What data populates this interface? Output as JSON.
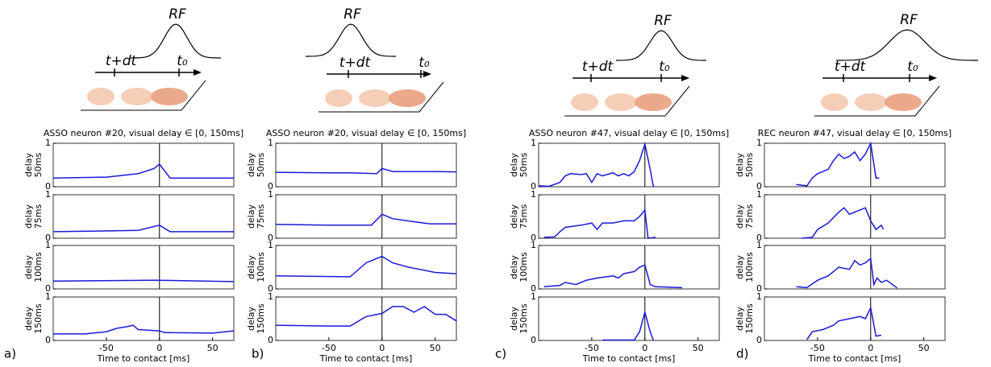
{
  "chart_data": [
    {
      "type": "line",
      "panel_label": "a)",
      "title": "ASSO neuron #20, visual delay ∈ [0, 150ms]",
      "x_label": "Time to contact [ms]",
      "xlim": [
        -100,
        70
      ],
      "xticks": [
        -50,
        0,
        50
      ],
      "ylim": [
        0,
        1
      ],
      "yticks": [
        0,
        1
      ],
      "contact_line": 0,
      "color": "#1a1ad8",
      "diagram": {
        "rf": "RF",
        "t1": "t+dt",
        "t0": "t₀"
      },
      "subplots": [
        {
          "y_label": [
            "delay",
            "50ms"
          ],
          "x": [
            -100,
            -50,
            -20,
            -10,
            -5,
            0,
            10,
            70
          ],
          "values": [
            0.2,
            0.22,
            0.3,
            0.38,
            0.42,
            0.52,
            0.2,
            0.2
          ]
        },
        {
          "y_label": [
            "delay",
            "75ms"
          ],
          "x": [
            -100,
            -20,
            0,
            10,
            70
          ],
          "values": [
            0.15,
            0.18,
            0.3,
            0.15,
            0.15
          ]
        },
        {
          "y_label": [
            "delay",
            "100ms"
          ],
          "x": [
            -100,
            -10,
            0,
            70
          ],
          "values": [
            0.18,
            0.2,
            0.2,
            0.17
          ]
        },
        {
          "y_label": [
            "delay",
            "150ms"
          ],
          "x": [
            -100,
            -70,
            -50,
            -40,
            -30,
            -25,
            -20,
            0,
            5,
            50,
            70
          ],
          "values": [
            0.15,
            0.15,
            0.2,
            0.28,
            0.32,
            0.35,
            0.25,
            0.22,
            0.18,
            0.17,
            0.22
          ]
        }
      ]
    },
    {
      "type": "line",
      "panel_label": "b)",
      "title": "ASSO neuron #20, visual delay ∈ [0, 150ms]",
      "x_label": "Time to contact [ms]",
      "xlim": [
        -100,
        70
      ],
      "xticks": [
        -50,
        0,
        50
      ],
      "ylim": [
        0,
        1
      ],
      "yticks": [
        0,
        1
      ],
      "contact_line": 0,
      "color": "#1a1ad8",
      "diagram": {
        "rf": "RF",
        "t1": "t+dt",
        "t0": "t₀"
      },
      "subplots": [
        {
          "y_label": [
            "delay",
            "50ms"
          ],
          "x": [
            -100,
            -50,
            -30,
            -5,
            0,
            10,
            50,
            70
          ],
          "values": [
            0.33,
            0.32,
            0.32,
            0.3,
            0.42,
            0.35,
            0.35,
            0.34
          ]
        },
        {
          "y_label": [
            "delay",
            "75ms"
          ],
          "x": [
            -100,
            -50,
            -10,
            0,
            10,
            30,
            45,
            70
          ],
          "values": [
            0.32,
            0.3,
            0.3,
            0.55,
            0.45,
            0.38,
            0.33,
            0.33
          ]
        },
        {
          "y_label": [
            "delay",
            "100ms"
          ],
          "x": [
            -100,
            -30,
            -15,
            0,
            10,
            25,
            50,
            70
          ],
          "values": [
            0.3,
            0.28,
            0.6,
            0.75,
            0.6,
            0.5,
            0.38,
            0.35
          ]
        },
        {
          "y_label": [
            "delay",
            "150ms"
          ],
          "x": [
            -100,
            -50,
            -30,
            -15,
            0,
            10,
            20,
            30,
            40,
            50,
            60,
            70
          ],
          "values": [
            0.35,
            0.33,
            0.33,
            0.55,
            0.62,
            0.78,
            0.78,
            0.65,
            0.78,
            0.6,
            0.6,
            0.45
          ]
        }
      ]
    },
    {
      "type": "line",
      "panel_label": "c)",
      "title": "ASSO neuron #47, visual delay ∈ [0, 150ms]",
      "x_label": "Time to contact [ms]",
      "xlim": [
        -100,
        70
      ],
      "xticks": [
        -50,
        0,
        50
      ],
      "ylim": [
        0,
        1
      ],
      "yticks": [
        0,
        1
      ],
      "contact_line": 0,
      "color": "#1a1ad8",
      "diagram": {
        "rf": "RF",
        "t1": "t+dt",
        "t0": "t₀"
      },
      "subplots": [
        {
          "y_label": [
            "delay",
            "50ms"
          ],
          "x": [
            -100,
            -90,
            -80,
            -75,
            -70,
            -60,
            -55,
            -50,
            -45,
            -40,
            -30,
            -25,
            -20,
            -15,
            -10,
            -5,
            0,
            5,
            8
          ],
          "values": [
            0.02,
            0.01,
            0.1,
            0.25,
            0.3,
            0.28,
            0.3,
            0.1,
            0.3,
            0.25,
            0.32,
            0.25,
            0.3,
            0.25,
            0.35,
            0.6,
            0.98,
            0.4,
            0
          ]
        },
        {
          "y_label": [
            "delay",
            "75ms"
          ],
          "x": [
            -95,
            -85,
            -80,
            -75,
            -60,
            -50,
            -45,
            -40,
            -30,
            -20,
            -10,
            -5,
            0,
            3,
            10
          ],
          "values": [
            0.02,
            0.03,
            0.15,
            0.25,
            0.3,
            0.35,
            0.2,
            0.35,
            0.35,
            0.4,
            0.4,
            0.5,
            0.65,
            0,
            0.02
          ]
        },
        {
          "y_label": [
            "delay",
            "100ms"
          ],
          "x": [
            -95,
            -80,
            -75,
            -65,
            -55,
            -45,
            -30,
            -25,
            -20,
            -10,
            -5,
            0,
            5,
            10,
            35
          ],
          "values": [
            0.05,
            0.08,
            0.15,
            0.1,
            0.2,
            0.25,
            0.3,
            0.25,
            0.35,
            0.4,
            0.5,
            0.55,
            0.1,
            0.05,
            0.03
          ]
        },
        {
          "y_label": [
            "delay",
            "150ms"
          ],
          "x": [
            -40,
            -20,
            -10,
            -5,
            0,
            5,
            8
          ],
          "values": [
            0.01,
            0.01,
            0.01,
            0.2,
            0.65,
            0.2,
            0
          ]
        }
      ]
    },
    {
      "type": "line",
      "panel_label": "d)",
      "title": "REC neuron #47, visual delay ∈ [0, 150ms]",
      "x_label": "Time to contact [ms]",
      "xlim": [
        -100,
        70
      ],
      "xticks": [
        -50,
        0,
        50
      ],
      "ylim": [
        0,
        1
      ],
      "yticks": [
        0,
        1
      ],
      "contact_line": 0,
      "color": "#1a1ad8",
      "diagram": {
        "rf": "RF",
        "t1": "t+dt",
        "t0": "t₀"
      },
      "subplots": [
        {
          "y_label": [
            "delay",
            "50ms"
          ],
          "x": [
            -70,
            -60,
            -55,
            -50,
            -40,
            -35,
            -30,
            -25,
            -20,
            -15,
            -10,
            -5,
            0,
            5,
            8
          ],
          "values": [
            0.05,
            0.02,
            0.2,
            0.3,
            0.4,
            0.6,
            0.75,
            0.65,
            0.7,
            0.8,
            0.6,
            0.75,
            1,
            0.2,
            0.2
          ]
        },
        {
          "y_label": [
            "delay",
            "75ms"
          ],
          "x": [
            -65,
            -55,
            -50,
            -40,
            -30,
            -25,
            -20,
            -15,
            -5,
            0,
            5,
            10,
            12
          ],
          "values": [
            0,
            0.02,
            0.2,
            0.35,
            0.6,
            0.7,
            0.55,
            0.6,
            0.7,
            0.4,
            0.2,
            0.3,
            0.2
          ]
        },
        {
          "y_label": [
            "delay",
            "100ms"
          ],
          "x": [
            -70,
            -60,
            -50,
            -40,
            -30,
            -20,
            -15,
            -10,
            -5,
            0,
            3,
            6,
            10,
            15,
            25
          ],
          "values": [
            0.05,
            0.03,
            0.2,
            0.3,
            0.5,
            0.45,
            0.65,
            0.55,
            0.6,
            0.7,
            0.1,
            0.25,
            0.15,
            0.2,
            0.02
          ]
        },
        {
          "y_label": [
            "delay",
            "150ms"
          ],
          "x": [
            -60,
            -55,
            -45,
            -35,
            -30,
            -20,
            -10,
            -5,
            0,
            5,
            10
          ],
          "values": [
            0.02,
            0.2,
            0.25,
            0.35,
            0.45,
            0.5,
            0.55,
            0.5,
            0.75,
            0.1,
            0.12
          ]
        }
      ]
    }
  ]
}
